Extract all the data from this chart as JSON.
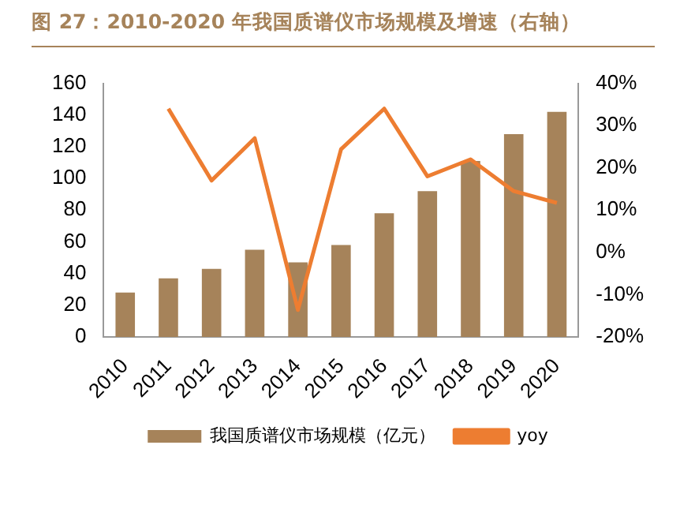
{
  "chart_data": {
    "type": "bar",
    "title": "图 27：2010-2020 年我国质谱仪市场规模及增速（右轴）",
    "categories": [
      "2010",
      "2011",
      "2012",
      "2013",
      "2014",
      "2015",
      "2016",
      "2017",
      "2018",
      "2019",
      "2020"
    ],
    "series": [
      {
        "name": "我国质谱仪市场规模（亿元）",
        "color": "#a6835a",
        "values": [
          28,
          37,
          43,
          55,
          47,
          58,
          78,
          92,
          111,
          128,
          142
        ]
      },
      {
        "name": "yoy",
        "type": "line",
        "axis": "y2",
        "color": "#ed7d31",
        "values": [
          null,
          34,
          17,
          27,
          -13.6,
          24.4,
          34,
          18,
          22,
          14.5,
          11.7
        ]
      }
    ],
    "ylim": [
      0,
      160
    ],
    "yticks": [
      0,
      20,
      40,
      60,
      80,
      100,
      120,
      140,
      160
    ],
    "y2lim": [
      -20,
      40
    ],
    "y2ticks": [
      {
        "value": -20,
        "label": "-20%"
      },
      {
        "value": -10,
        "label": "-10%"
      },
      {
        "value": 0,
        "label": "0%"
      },
      {
        "value": 10,
        "label": "10%"
      },
      {
        "value": 20,
        "label": "20%"
      },
      {
        "value": 30,
        "label": "30%"
      },
      {
        "value": 40,
        "label": "40%"
      }
    ],
    "grid": false,
    "legend": "bottom",
    "marker": "none"
  }
}
